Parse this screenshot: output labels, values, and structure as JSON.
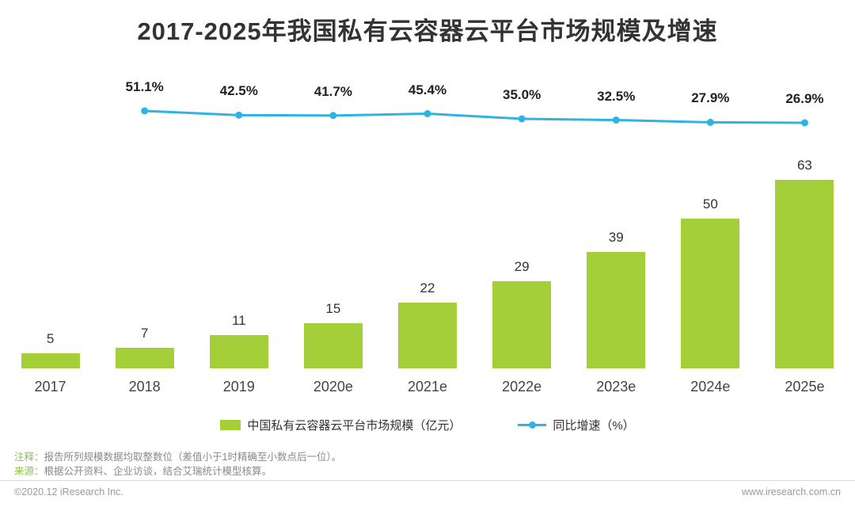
{
  "title": "2017-2025年我国私有云容器云平台市场规模及增速",
  "chart_data": {
    "type": "bar+line",
    "title": "2017-2025年我国私有云容器云平台市场规模及增速",
    "categories": [
      "2017",
      "2018",
      "2019",
      "2020e",
      "2021e",
      "2022e",
      "2023e",
      "2024e",
      "2025e"
    ],
    "series": [
      {
        "name": "中国私有云容器云平台市场规模（亿元）",
        "type": "bar",
        "color": "#a4cf39",
        "values": [
          5,
          7,
          11,
          15,
          22,
          29,
          39,
          50,
          63
        ]
      },
      {
        "name": "同比增速（%）",
        "type": "line",
        "color": "#2fb3e3",
        "values": [
          null,
          51.1,
          42.5,
          41.7,
          45.4,
          35.0,
          32.5,
          27.9,
          26.9
        ],
        "labels": [
          "",
          "51.1%",
          "42.5%",
          "41.7%",
          "45.4%",
          "35.0%",
          "32.5%",
          "27.9%",
          "26.9%"
        ]
      }
    ],
    "ylim": [
      0,
      70
    ],
    "grid": false,
    "legend_position": "bottom"
  },
  "legend": [
    {
      "label": "中国私有云容器云平台市场规模（亿元）",
      "color": "#a4cf39",
      "marker": "rect"
    },
    {
      "label": "同比增速（%）",
      "color": "#2fb3e3",
      "marker": "line-dot"
    }
  ],
  "notes": [
    {
      "label": "注释：",
      "text": "报告所列规模数据均取整数位（差值小于1时精确至小数点后一位）。"
    },
    {
      "label": "来源：",
      "text": "根据公开资料、企业访谈，结合艾瑞统计模型核算。"
    }
  ],
  "footer": {
    "left": "©2020.12 iResearch Inc.",
    "right": "www.iresearch.com.cn"
  }
}
